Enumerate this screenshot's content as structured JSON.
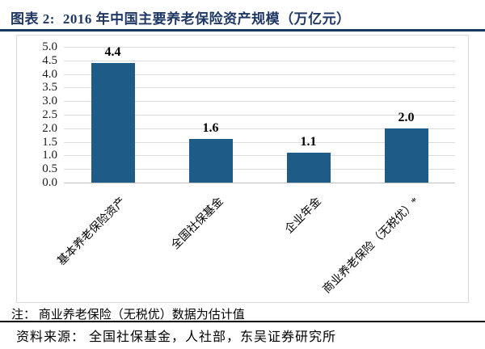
{
  "header": {
    "label": "图表 2:",
    "title": "2016 年中国主要养老保险资产规模（万亿元）"
  },
  "chart_data": {
    "type": "bar",
    "title": "2016 年中国主要养老保险资产规模（万亿元）",
    "categories": [
      "基本养老保险资产",
      "全国社保基金",
      "企业年金",
      "商业养老保险（无税优）*"
    ],
    "values": [
      4.4,
      1.6,
      1.1,
      2.0
    ],
    "value_labels": [
      "4.4",
      "1.6",
      "1.1",
      "2.0"
    ],
    "xlabel": "",
    "ylabel": "",
    "ylim": [
      0,
      5
    ],
    "y_step": 0.5,
    "y_ticks": [
      "5.0",
      "4.5",
      "4.0",
      "3.5",
      "3.0",
      "2.5",
      "2.0",
      "1.5",
      "1.0",
      "0.5",
      "0.0"
    ],
    "grid": true,
    "legend": "none",
    "bar_color": "#1F5B87"
  },
  "footer": {
    "note": "注： 商业养老保险（无税优）数据为估计值",
    "source": "资料来源： 全国社保基金，人社部，东吴证券研究所"
  },
  "colors": {
    "title_text": "#1F3864",
    "title_rule": "#17375E",
    "bar": "#1F5B87",
    "gridline": "#DCDCDC",
    "axis_line": "#C0C0C0",
    "frame_border": "#D9D9D9",
    "note_rule": "#000000",
    "text": "#000000"
  }
}
